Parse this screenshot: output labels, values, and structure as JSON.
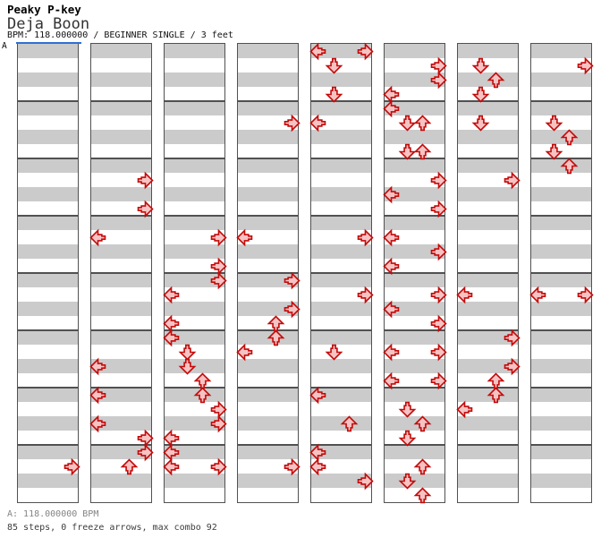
{
  "header": {
    "title": "Peaky P-key",
    "subtitle": "Deja Boon",
    "bpm_line": "BPM: 118.000000 / BEGINNER SINGLE / 3 feet"
  },
  "section": {
    "label": "A"
  },
  "footer": {
    "bpm_info": "A: 118.000000 BPM",
    "summary": "85 steps, 0 freeze arrows, max combo 92"
  },
  "colors": {
    "stripe_gray": "#cbcbcb",
    "stripe_white": "#ffffff",
    "grid": "#515151",
    "arrow_fill": "#f6c3c3",
    "arrow_outline": "#c40a0a",
    "section_marker_blue": "#2f6fd2",
    "footer_bpm_text": "#848484",
    "footer_summary_text": "#3d3d3d"
  },
  "chart": {
    "columns": 8,
    "rows_per_column": 32,
    "rows_per_measure": 4,
    "lanes": [
      "left",
      "down",
      "up",
      "right"
    ],
    "arrows": [
      {
        "c": 1,
        "r": 29,
        "d": "R"
      },
      {
        "c": 2,
        "r": 9,
        "d": "R"
      },
      {
        "c": 2,
        "r": 11,
        "d": "R"
      },
      {
        "c": 2,
        "r": 13,
        "d": "L"
      },
      {
        "c": 2,
        "r": 22,
        "d": "L"
      },
      {
        "c": 2,
        "r": 24,
        "d": "L"
      },
      {
        "c": 2,
        "r": 26,
        "d": "L"
      },
      {
        "c": 2,
        "r": 27,
        "d": "R"
      },
      {
        "c": 2,
        "r": 28,
        "d": "R"
      },
      {
        "c": 2,
        "r": 29,
        "d": "U"
      },
      {
        "c": 3,
        "r": 13,
        "d": "R"
      },
      {
        "c": 3,
        "r": 15,
        "d": "R"
      },
      {
        "c": 3,
        "r": 16,
        "d": "R"
      },
      {
        "c": 3,
        "r": 17,
        "d": "L"
      },
      {
        "c": 3,
        "r": 19,
        "d": "L"
      },
      {
        "c": 3,
        "r": 20,
        "d": "L"
      },
      {
        "c": 3,
        "r": 21,
        "d": "D"
      },
      {
        "c": 3,
        "r": 22,
        "d": "D"
      },
      {
        "c": 3,
        "r": 23,
        "d": "U"
      },
      {
        "c": 3,
        "r": 24,
        "d": "U"
      },
      {
        "c": 3,
        "r": 25,
        "d": "R"
      },
      {
        "c": 3,
        "r": 26,
        "d": "R"
      },
      {
        "c": 3,
        "r": 27,
        "d": "L"
      },
      {
        "c": 3,
        "r": 28,
        "d": "L"
      },
      {
        "c": 3,
        "r": 29,
        "d": "L"
      },
      {
        "c": 3,
        "r": 29,
        "d": "R"
      },
      {
        "c": 4,
        "r": 5,
        "d": "R"
      },
      {
        "c": 4,
        "r": 13,
        "d": "L"
      },
      {
        "c": 4,
        "r": 16,
        "d": "R"
      },
      {
        "c": 4,
        "r": 18,
        "d": "R"
      },
      {
        "c": 4,
        "r": 19,
        "d": "U"
      },
      {
        "c": 4,
        "r": 20,
        "d": "U"
      },
      {
        "c": 4,
        "r": 21,
        "d": "L"
      },
      {
        "c": 4,
        "r": 29,
        "d": "R"
      },
      {
        "c": 5,
        "r": 0,
        "d": "L"
      },
      {
        "c": 5,
        "r": 0,
        "d": "R"
      },
      {
        "c": 5,
        "r": 1,
        "d": "D"
      },
      {
        "c": 5,
        "r": 3,
        "d": "D"
      },
      {
        "c": 5,
        "r": 5,
        "d": "L"
      },
      {
        "c": 5,
        "r": 13,
        "d": "R"
      },
      {
        "c": 5,
        "r": 17,
        "d": "R"
      },
      {
        "c": 5,
        "r": 21,
        "d": "D"
      },
      {
        "c": 5,
        "r": 24,
        "d": "L"
      },
      {
        "c": 5,
        "r": 26,
        "d": "U"
      },
      {
        "c": 5,
        "r": 28,
        "d": "L"
      },
      {
        "c": 5,
        "r": 29,
        "d": "L"
      },
      {
        "c": 5,
        "r": 30,
        "d": "R"
      },
      {
        "c": 6,
        "r": 1,
        "d": "R"
      },
      {
        "c": 6,
        "r": 2,
        "d": "R"
      },
      {
        "c": 6,
        "r": 3,
        "d": "L"
      },
      {
        "c": 6,
        "r": 4,
        "d": "L"
      },
      {
        "c": 6,
        "r": 5,
        "d": "D"
      },
      {
        "c": 6,
        "r": 5,
        "d": "U"
      },
      {
        "c": 6,
        "r": 7,
        "d": "D"
      },
      {
        "c": 6,
        "r": 7,
        "d": "U"
      },
      {
        "c": 6,
        "r": 9,
        "d": "R"
      },
      {
        "c": 6,
        "r": 10,
        "d": "L"
      },
      {
        "c": 6,
        "r": 11,
        "d": "R"
      },
      {
        "c": 6,
        "r": 13,
        "d": "L"
      },
      {
        "c": 6,
        "r": 14,
        "d": "R"
      },
      {
        "c": 6,
        "r": 15,
        "d": "L"
      },
      {
        "c": 6,
        "r": 17,
        "d": "R"
      },
      {
        "c": 6,
        "r": 18,
        "d": "L"
      },
      {
        "c": 6,
        "r": 19,
        "d": "R"
      },
      {
        "c": 6,
        "r": 21,
        "d": "L"
      },
      {
        "c": 6,
        "r": 21,
        "d": "R"
      },
      {
        "c": 6,
        "r": 23,
        "d": "L"
      },
      {
        "c": 6,
        "r": 23,
        "d": "R"
      },
      {
        "c": 6,
        "r": 25,
        "d": "D"
      },
      {
        "c": 6,
        "r": 26,
        "d": "U"
      },
      {
        "c": 6,
        "r": 27,
        "d": "D"
      },
      {
        "c": 6,
        "r": 29,
        "d": "U"
      },
      {
        "c": 6,
        "r": 30,
        "d": "D"
      },
      {
        "c": 6,
        "r": 31,
        "d": "U"
      },
      {
        "c": 7,
        "r": 1,
        "d": "D"
      },
      {
        "c": 7,
        "r": 2,
        "d": "U"
      },
      {
        "c": 7,
        "r": 3,
        "d": "D"
      },
      {
        "c": 7,
        "r": 5,
        "d": "D"
      },
      {
        "c": 7,
        "r": 9,
        "d": "R"
      },
      {
        "c": 7,
        "r": 17,
        "d": "L"
      },
      {
        "c": 7,
        "r": 20,
        "d": "R"
      },
      {
        "c": 7,
        "r": 22,
        "d": "R"
      },
      {
        "c": 7,
        "r": 23,
        "d": "U"
      },
      {
        "c": 7,
        "r": 24,
        "d": "U"
      },
      {
        "c": 7,
        "r": 25,
        "d": "L"
      },
      {
        "c": 8,
        "r": 1,
        "d": "R"
      },
      {
        "c": 8,
        "r": 5,
        "d": "D"
      },
      {
        "c": 8,
        "r": 6,
        "d": "U"
      },
      {
        "c": 8,
        "r": 7,
        "d": "D"
      },
      {
        "c": 8,
        "r": 8,
        "d": "U"
      },
      {
        "c": 8,
        "r": 17,
        "d": "L"
      },
      {
        "c": 8,
        "r": 17,
        "d": "R"
      }
    ]
  }
}
